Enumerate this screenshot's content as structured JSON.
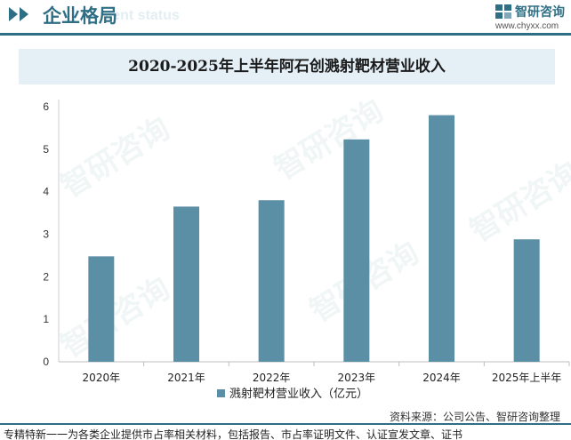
{
  "header": {
    "title": "企业格局",
    "ghost_text": "ment status",
    "brand": "智研咨询",
    "url": "www.chyxx.com"
  },
  "watermark": "智研咨询",
  "source": "资料来源：公司公告、智研咨询整理",
  "footer_note": "专精特新一一为各类企业提供市占率相关材料，包括报告、市占率证明文件、认证宣发文章、证书",
  "colors": {
    "bar": "#5b8fa6",
    "brand": "#2f6f86",
    "title_band": "#e4eff6"
  },
  "chart_data": {
    "type": "bar",
    "title": "2020-2025年上半年阿石创溅射靶材营业收入",
    "categories": [
      "2020年",
      "2021年",
      "2022年",
      "2023年",
      "2024年",
      "2025年上半年"
    ],
    "series": [
      {
        "name": "溅射靶材营业收入（亿元）",
        "values": [
          2.48,
          3.65,
          3.8,
          5.23,
          5.8,
          2.88
        ]
      }
    ],
    "yticks": [
      0,
      1,
      2,
      3,
      4,
      5,
      6
    ],
    "ylim": [
      0,
      6
    ],
    "grid": false,
    "legend": "bottom"
  }
}
